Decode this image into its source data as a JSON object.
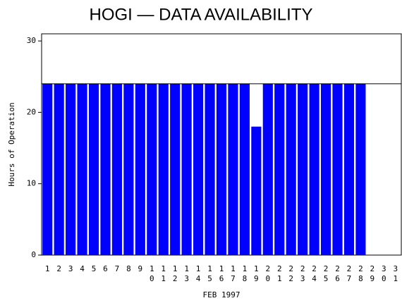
{
  "chart_data": {
    "type": "bar",
    "title": "HOGI — DATA AVAILABILITY",
    "x_label": "FEB 1997",
    "y_label": "Hours of Operation",
    "categories": [
      "1",
      "2",
      "3",
      "4",
      "5",
      "6",
      "7",
      "8",
      "9",
      "10",
      "11",
      "12",
      "13",
      "14",
      "15",
      "16",
      "17",
      "18",
      "19",
      "20",
      "21",
      "22",
      "23",
      "24",
      "25",
      "26",
      "27",
      "28",
      "29",
      "30",
      "31"
    ],
    "values": [
      24,
      24,
      24,
      24,
      24,
      24,
      24,
      24,
      24,
      24,
      24,
      24,
      24,
      24,
      24,
      24,
      24,
      24,
      18,
      24,
      24,
      24,
      24,
      24,
      24,
      24,
      24,
      24,
      null,
      null,
      null
    ],
    "color": "#0000ff",
    "ylim": [
      0,
      31
    ],
    "yticks": [
      0,
      10,
      20,
      30
    ],
    "reference_line": 24
  }
}
